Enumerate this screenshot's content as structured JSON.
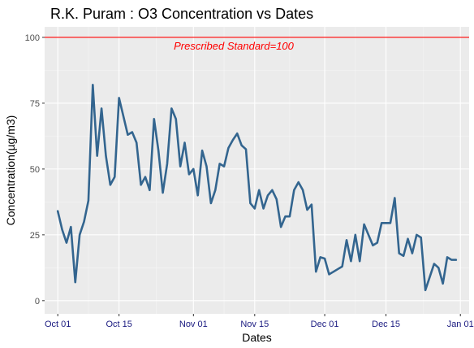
{
  "chart_data": {
    "type": "line",
    "title": "R.K. Puram : O3 Concentration vs Dates",
    "xlabel": "Dates",
    "ylabel": "Concentration(µg/m3)",
    "xlim": [
      "2017-09-28",
      "2018-01-03"
    ],
    "ylim": [
      -5,
      104
    ],
    "x_ticks": [
      {
        "date": "2017-10-01",
        "label": "Oct 01"
      },
      {
        "date": "2017-10-15",
        "label": "Oct 15"
      },
      {
        "date": "2017-11-01",
        "label": "Nov 01"
      },
      {
        "date": "2017-11-15",
        "label": "Nov 15"
      },
      {
        "date": "2017-12-01",
        "label": "Dec 01"
      },
      {
        "date": "2017-12-15",
        "label": "Dec 15"
      },
      {
        "date": "2018-01-01",
        "label": "Jan 01"
      }
    ],
    "y_ticks": [
      0,
      25,
      50,
      75,
      100
    ],
    "grid": true,
    "series": [
      {
        "color": "#33658f",
        "x": [
          "2017-10-01",
          "2017-10-02",
          "2017-10-03",
          "2017-10-04",
          "2017-10-05",
          "2017-10-06",
          "2017-10-07",
          "2017-10-08",
          "2017-10-09",
          "2017-10-10",
          "2017-10-11",
          "2017-10-12",
          "2017-10-13",
          "2017-10-14",
          "2017-10-15",
          "2017-10-16",
          "2017-10-17",
          "2017-10-18",
          "2017-10-19",
          "2017-10-20",
          "2017-10-21",
          "2017-10-22",
          "2017-10-23",
          "2017-10-24",
          "2017-10-25",
          "2017-10-26",
          "2017-10-27",
          "2017-10-28",
          "2017-10-29",
          "2017-10-30",
          "2017-10-31",
          "2017-11-01",
          "2017-11-02",
          "2017-11-03",
          "2017-11-04",
          "2017-11-05",
          "2017-11-06",
          "2017-11-07",
          "2017-11-08",
          "2017-11-09",
          "2017-11-10",
          "2017-11-11",
          "2017-11-12",
          "2017-11-13",
          "2017-11-14",
          "2017-11-15",
          "2017-11-16",
          "2017-11-17",
          "2017-11-18",
          "2017-11-19",
          "2017-11-20",
          "2017-11-21",
          "2017-11-22",
          "2017-11-23",
          "2017-11-24",
          "2017-11-25",
          "2017-11-26",
          "2017-11-27",
          "2017-11-28",
          "2017-11-29",
          "2017-11-30",
          "2017-12-01",
          "2017-12-02",
          "2017-12-03",
          "2017-12-04",
          "2017-12-05",
          "2017-12-06",
          "2017-12-07",
          "2017-12-08",
          "2017-12-09",
          "2017-12-10",
          "2017-12-11",
          "2017-12-12",
          "2017-12-13",
          "2017-12-14",
          "2017-12-15",
          "2017-12-16",
          "2017-12-17",
          "2017-12-18",
          "2017-12-19",
          "2017-12-20",
          "2017-12-21",
          "2017-12-22",
          "2017-12-23",
          "2017-12-24",
          "2017-12-25",
          "2017-12-26",
          "2017-12-27",
          "2017-12-28",
          "2017-12-29",
          "2017-12-30",
          "2017-12-31"
        ],
        "y": [
          34,
          27,
          22,
          28,
          7,
          25,
          30,
          38,
          82,
          55,
          73,
          55,
          44,
          47,
          77,
          70,
          63,
          64,
          60,
          44,
          47,
          42,
          69,
          57,
          41,
          52,
          73,
          69,
          51,
          60,
          48,
          50,
          40,
          57,
          51,
          37,
          42,
          52,
          51,
          58,
          61,
          63.5,
          59,
          57.5,
          37,
          35,
          42,
          35,
          40,
          42,
          38.5,
          28,
          32,
          32,
          42,
          45,
          42,
          34.5,
          36.5,
          11,
          16.5,
          16,
          10,
          11,
          12,
          13,
          23,
          15,
          25,
          15,
          29,
          25,
          21,
          22,
          29.5,
          29.5,
          29.5,
          39,
          18,
          17,
          23.5,
          18,
          25,
          24,
          4,
          9,
          14,
          12.5,
          6.5,
          16.5,
          15.5,
          15.5
        ]
      }
    ],
    "reference_line": {
      "y": 100,
      "color": "#ff0000",
      "label": "Prescribed Standard=100"
    }
  }
}
